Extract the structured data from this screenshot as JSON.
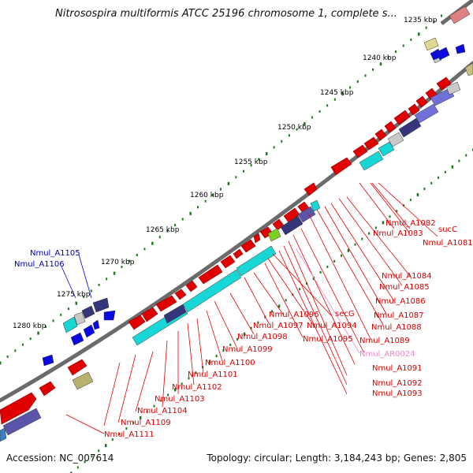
{
  "title": "Nitrosospira multiformis ATCC 25196 chromosome 1, complete s...",
  "footer": {
    "accession": "Accession: NC_007614",
    "summary": "Topology: circular; Length: 3,184,243 bp; Genes: 2,805"
  },
  "colors": {
    "backbone": "#6b6b6b",
    "tick": "#1a7a1a",
    "red_gene": "#e00000",
    "cyan_gene": "#19d6d6",
    "navy_gene": "#35357a",
    "label_red": "#d40000",
    "label_blue": "#0000aa",
    "label_pink": "#ee88cc"
  },
  "kbp_labels": [
    "1235 kbp",
    "1240 kbp",
    "1245 kbp",
    "1250 kbp",
    "1255 kbp",
    "1260 kbp",
    "1265 kbp",
    "1270 kbp",
    "1275 kbp",
    "1280 kbp"
  ],
  "gene_labels": {
    "blue": [
      "Nmul_A1105",
      "Nmul_A1106"
    ],
    "red": [
      "Nmul_A1082",
      "sucC",
      "Nmul_A1083",
      "Nmul_A1081",
      "Nmul_A1084",
      "Nmul_A1085",
      "Nmul_A1086",
      "Nmul_A1087",
      "Nmul_A1088",
      "Nmul_A1089",
      "Nmul_A1096",
      "secG",
      "Nmul_A1097",
      "Nmul_A1094",
      "Nmul_A1098",
      "Nmul_A1095",
      "Nmul_A1099",
      "Nmul_A1100",
      "Nmul_A1101",
      "Nmul_A1102",
      "Nmul_A1103",
      "Nmul_A1104",
      "Nmul_A1109",
      "Nmul_A1111",
      "Nmul_A1091",
      "Nmul_A1092",
      "Nmul_A1093"
    ],
    "pink": [
      "Nmul_AR0024"
    ]
  }
}
